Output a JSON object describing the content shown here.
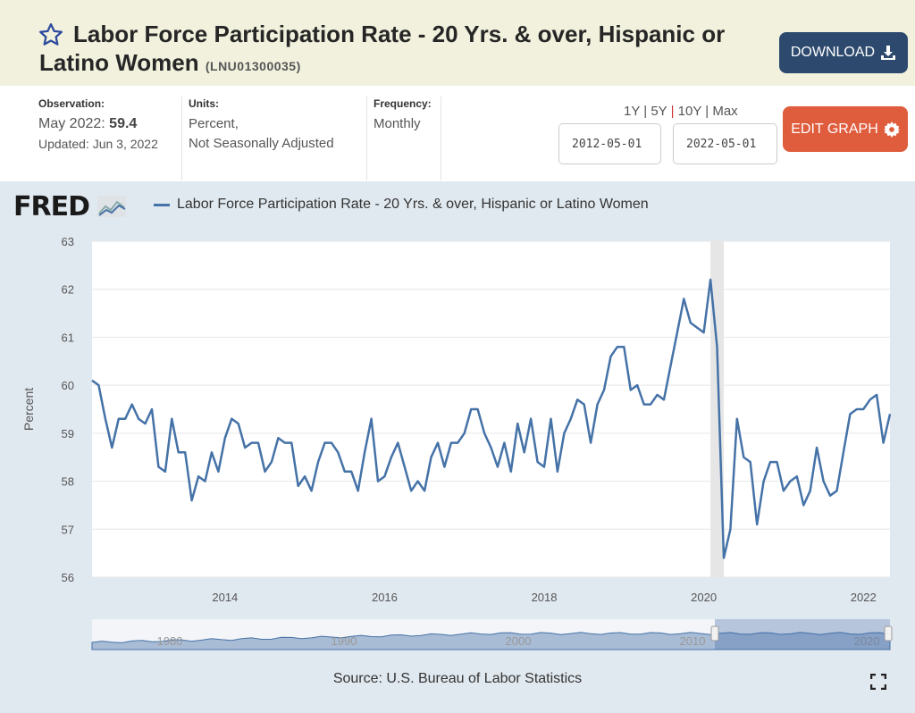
{
  "header": {
    "title": "Labor Force Participation Rate - 20 Yrs. & over, Hispanic or Latino Women",
    "series_id": "(LNU01300035)",
    "download_label": "DOWNLOAD"
  },
  "info": {
    "observation_label": "Observation:",
    "observation_date": "May 2022:",
    "observation_value": "59.4",
    "updated": "Updated: Jun 3, 2022",
    "units_label": "Units:",
    "units_line1": "Percent,",
    "units_line2": "Not Seasonally Adjusted",
    "frequency_label": "Frequency:",
    "frequency_value": "Monthly"
  },
  "controls": {
    "range_1y": "1Y",
    "range_5y": "5Y",
    "range_10y": "10Y",
    "range_max": "Max",
    "sep": "|",
    "start_date": "2012-05-01",
    "end_date": "2022-05-01",
    "edit_label": "EDIT GRAPH"
  },
  "brand": {
    "logo": "FRED"
  },
  "source": "Source: U.S. Bureau of Labor Statistics",
  "colors": {
    "series": "#4572a7",
    "recession": "#e6e6e6",
    "download": "#2d4a6e",
    "edit": "#df5c3d"
  },
  "chart_data": {
    "type": "line",
    "legend": "Labor Force Participation Rate - 20 Yrs. & over, Hispanic or Latino Women",
    "ylabel": "Percent",
    "ylim": [
      56,
      63
    ],
    "yticks": [
      "56",
      "57",
      "58",
      "59",
      "60",
      "61",
      "62",
      "63"
    ],
    "xstart": "2012-05",
    "frequency": "monthly",
    "xlim": [
      "2012-05",
      "2022-05"
    ],
    "xticks": [
      "2014",
      "2016",
      "2018",
      "2020",
      "2022"
    ],
    "navigator_ticks": [
      "1980",
      "1990",
      "2000",
      "2010",
      "2020"
    ],
    "recession": [
      "2020-02",
      "2020-04"
    ],
    "values": [
      60.1,
      60.0,
      59.3,
      58.7,
      59.3,
      59.3,
      59.6,
      59.3,
      59.2,
      59.5,
      58.3,
      58.2,
      59.3,
      58.6,
      58.6,
      57.6,
      58.1,
      58.0,
      58.6,
      58.2,
      58.9,
      59.3,
      59.2,
      58.7,
      58.8,
      58.8,
      58.2,
      58.4,
      58.9,
      58.8,
      58.8,
      57.9,
      58.1,
      57.8,
      58.4,
      58.8,
      58.8,
      58.6,
      58.2,
      58.2,
      57.8,
      58.6,
      59.3,
      58.0,
      58.1,
      58.5,
      58.8,
      58.3,
      57.8,
      58.0,
      57.8,
      58.5,
      58.8,
      58.3,
      58.8,
      58.8,
      59.0,
      59.5,
      59.5,
      59.0,
      58.7,
      58.3,
      58.8,
      58.2,
      59.2,
      58.6,
      59.3,
      58.4,
      58.3,
      59.3,
      58.2,
      59.0,
      59.3,
      59.7,
      59.6,
      58.8,
      59.6,
      59.9,
      60.6,
      60.8,
      60.8,
      59.9,
      60.0,
      59.6,
      59.6,
      59.8,
      59.7,
      60.4,
      61.1,
      61.8,
      61.3,
      61.2,
      61.1,
      62.2,
      60.8,
      56.4,
      57.0,
      59.3,
      58.5,
      58.4,
      57.1,
      58.0,
      58.4,
      58.4,
      57.8,
      58.0,
      58.1,
      57.5,
      57.8,
      58.7,
      58.0,
      57.7,
      57.8,
      58.6,
      59.4,
      59.5,
      59.5,
      59.7,
      59.8,
      58.8,
      59.4
    ]
  }
}
